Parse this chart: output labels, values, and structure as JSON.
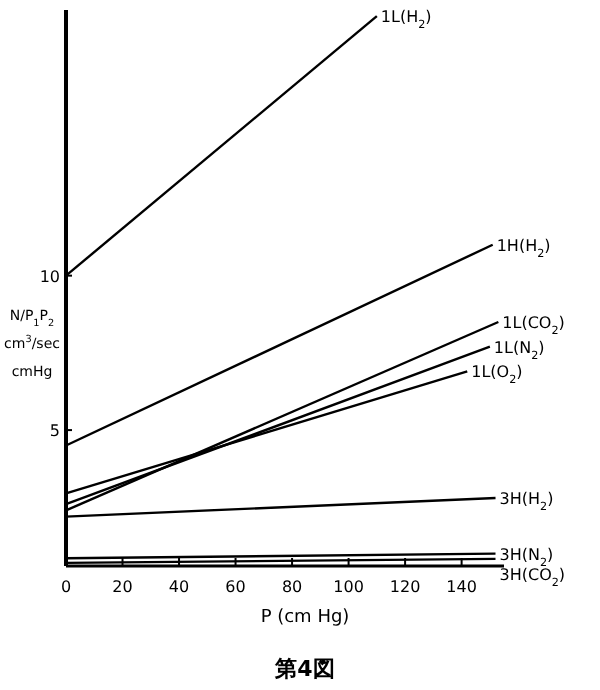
{
  "chart_data": {
    "type": "line",
    "title": "第4図",
    "xlabel": "P (cm Hg)",
    "ylabel": "N/P$_{1}$P$_{2}$ cm$^{3}$/sec cmHg",
    "xlim": [
      0,
      155
    ],
    "ylim": [
      0.6,
      18.6
    ],
    "xticks": [
      0,
      20,
      40,
      60,
      80,
      100,
      120,
      140
    ],
    "yticks": [
      5,
      10
    ],
    "grid": false,
    "legend": false,
    "marker": "none",
    "series": [
      {
        "name": "1L(H$_{2}$)",
        "color": "#000000",
        "x": [
          0,
          110
        ],
        "values": [
          10,
          18.4
        ]
      },
      {
        "name": "1H(H$_{2}$)",
        "color": "#000000",
        "x": [
          0,
          151
        ],
        "values": [
          4.5,
          11.0
        ]
      },
      {
        "name": "1L(CO$_{2}$)",
        "color": "#000000",
        "x": [
          0,
          153
        ],
        "values": [
          2.4,
          8.5
        ]
      },
      {
        "name": "1L(N$_{2}$)",
        "color": "#000000",
        "x": [
          0,
          150
        ],
        "values": [
          2.6,
          7.7
        ]
      },
      {
        "name": "1L(O$_{2}$)",
        "color": "#000000",
        "x": [
          0,
          142
        ],
        "values": [
          2.95,
          6.9
        ]
      },
      {
        "name": "3H(H$_{2}$)",
        "color": "#000000",
        "x": [
          0,
          152
        ],
        "values": [
          2.2,
          2.8
        ]
      },
      {
        "name": "3H(N$_{2}$)",
        "color": "#000000",
        "x": [
          0,
          152
        ],
        "values": [
          0.85,
          1.0
        ]
      },
      {
        "name": "3H(CO$_{2}$)",
        "color": "#000000",
        "x": [
          0,
          152
        ],
        "values": [
          0.7,
          0.83
        ]
      }
    ]
  }
}
